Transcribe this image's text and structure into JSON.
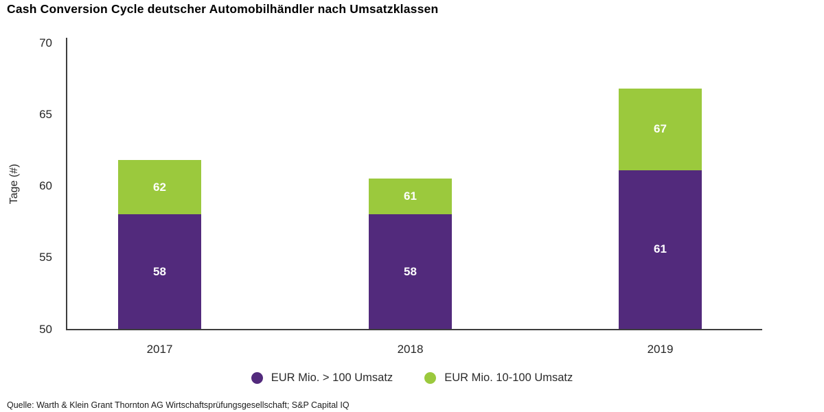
{
  "title": "Cash Conversion Cycle deutscher Automobilhändler nach Umsatzklassen",
  "source": "Quelle: Warth & Klein Grant Thornton AG Wirtschaftsprüfungsgesellschaft; S&P Capital IQ",
  "colors": {
    "purple": "#522a7c",
    "green": "#9bc93d",
    "axis": "#3d3d3d",
    "text": "#262626",
    "bar_label": "#ffffff"
  },
  "chart_data": {
    "type": "bar",
    "subtype": "stacked-overlay",
    "title": "Cash Conversion Cycle deutscher Automobilhändler nach Umsatzklassen",
    "categories": [
      "2017",
      "2018",
      "2019"
    ],
    "series": [
      {
        "name": "EUR Mio. > 100 Umsatz",
        "color": "#522a7c",
        "values": [
          58,
          58,
          61
        ],
        "plot_values": [
          58,
          58,
          61.1
        ]
      },
      {
        "name": "EUR Mio. 10-100 Umsatz",
        "color": "#9bc93d",
        "values": [
          62,
          61,
          67
        ],
        "plot_values": [
          61.8,
          60.5,
          66.8
        ]
      }
    ],
    "xlabel": "",
    "ylabel": "Tage (#)",
    "ylim": [
      50,
      70
    ],
    "yticks": [
      70,
      65,
      60,
      55,
      50
    ],
    "grid": false,
    "legend_position": "bottom"
  }
}
